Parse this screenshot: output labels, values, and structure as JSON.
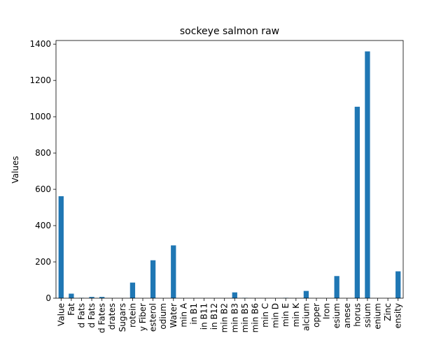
{
  "chart_data": {
    "type": "bar",
    "title": "sockeye salmon raw",
    "xlabel": "",
    "ylabel": "Values",
    "ylim": [
      0,
      1400
    ],
    "yticks": [
      0,
      200,
      400,
      600,
      800,
      1000,
      1200,
      1400
    ],
    "grid": false,
    "legend": "none",
    "bar_color": "#1f77b4",
    "categories": [
      "Value",
      "Fat",
      "d Fats",
      "d Fats",
      "d Fates",
      "drates",
      "Sugars",
      "rotein",
      "y Fiber",
      "esterol",
      "odium",
      "Water",
      "min A",
      "in B1",
      "in B11",
      "in B12",
      "min B2",
      "min B3",
      "min B5",
      "min B6",
      "min C",
      "min D",
      "min E",
      "min K",
      "alcium",
      "opper",
      "Iron",
      "esium",
      "anese",
      "horus",
      "ssium",
      "enium",
      "Zinc",
      "ensity"
    ],
    "values": [
      562,
      25,
      2,
      7,
      7,
      0,
      0,
      86,
      0,
      209,
      0,
      291,
      0,
      0,
      0,
      0,
      0,
      32,
      2,
      0,
      0,
      0,
      2,
      0,
      40,
      0,
      0,
      122,
      0,
      1055,
      1360,
      0,
      0,
      148
    ]
  }
}
